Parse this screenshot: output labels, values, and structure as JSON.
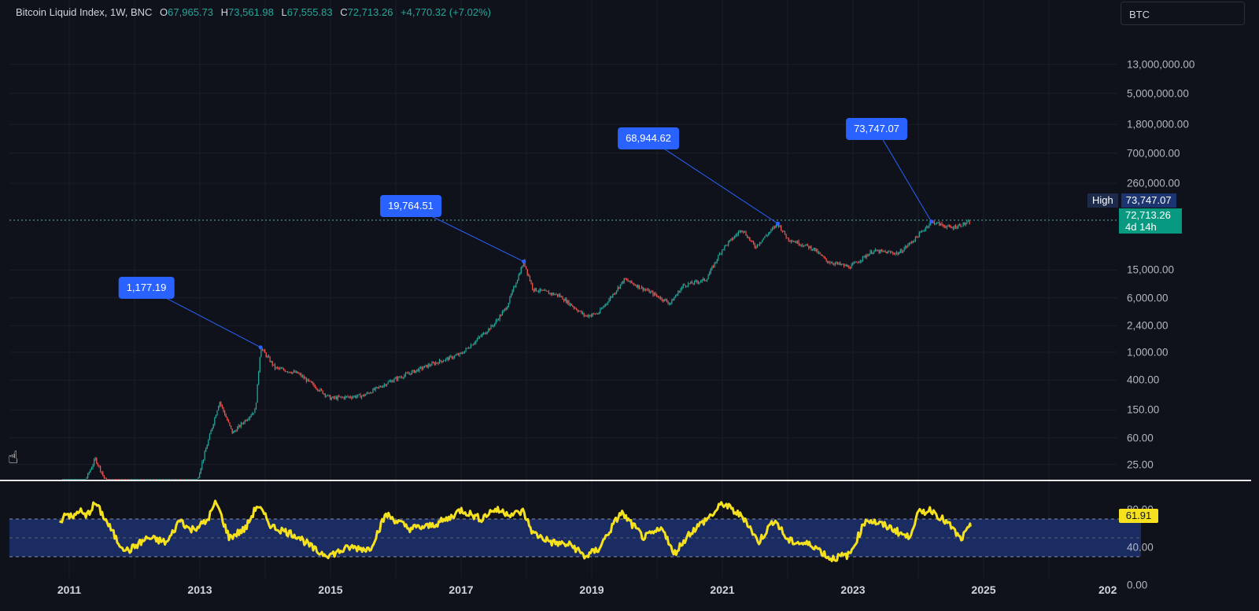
{
  "legend": {
    "symbol_text": "Bitcoin Liquid Index, 1W, BNC",
    "open_label": "O",
    "open": "67,965.73",
    "high_label": "H",
    "high": "73,561.98",
    "low_label": "L",
    "low": "67,555.83",
    "close_label": "C",
    "close": "72,713.26",
    "change": "+4,770.32 (+7.02%)"
  },
  "symbol_box": "BTC",
  "price_tags": {
    "high_label": "High",
    "high_value": "73,747.07",
    "last_value": "72,713.26",
    "countdown": "4d 14h",
    "rsi_value": "61.91"
  },
  "colors": {
    "background": "#0f121a",
    "up": "#26a69a",
    "down": "#ef5350",
    "callout": "#2962ff",
    "rsi_line": "#f5e11e",
    "rsi_band": "#1c2e66"
  },
  "chart_data": [
    {
      "type": "candlestick",
      "scale": "log",
      "x_axis_years": [
        2011,
        2013,
        2015,
        2017,
        2019,
        2021,
        2023,
        2025
      ],
      "x_tick_labels": [
        "2011",
        "2013",
        "2015",
        "2017",
        "2019",
        "2021",
        "2023",
        "2025",
        "202"
      ],
      "y_tick_labels": [
        "13,000,000.00",
        "5,000,000.00",
        "1,800,000.00",
        "700,000.00",
        "260,000.00",
        "15,000.00",
        "6,000.00",
        "2,400.00",
        "1,000.00",
        "400.00",
        "150.00",
        "60.00",
        "25.00"
      ],
      "y_ticks": [
        13000000,
        5000000,
        1800000,
        700000,
        260000,
        15000,
        6000,
        2400,
        1000,
        400,
        150,
        60,
        25
      ],
      "price_path": [
        [
          2010.9,
          3
        ],
        [
          2011.4,
          30
        ],
        [
          2011.9,
          3
        ],
        [
          2012.5,
          8
        ],
        [
          2012.95,
          14
        ],
        [
          2013.3,
          200
        ],
        [
          2013.5,
          70
        ],
        [
          2013.85,
          150
        ],
        [
          2013.93,
          1177
        ],
        [
          2014.15,
          600
        ],
        [
          2014.5,
          500
        ],
        [
          2015.0,
          220
        ],
        [
          2015.5,
          240
        ],
        [
          2015.95,
          400
        ],
        [
          2016.5,
          650
        ],
        [
          2017.0,
          950
        ],
        [
          2017.5,
          2500
        ],
        [
          2017.7,
          4500
        ],
        [
          2017.96,
          19764
        ],
        [
          2018.1,
          8000
        ],
        [
          2018.5,
          6500
        ],
        [
          2018.9,
          3300
        ],
        [
          2019.1,
          3600
        ],
        [
          2019.5,
          11000
        ],
        [
          2019.9,
          7200
        ],
        [
          2020.2,
          5000
        ],
        [
          2020.4,
          9000
        ],
        [
          2020.75,
          11000
        ],
        [
          2021.0,
          30000
        ],
        [
          2021.3,
          58000
        ],
        [
          2021.5,
          32000
        ],
        [
          2021.85,
          68944
        ],
        [
          2022.0,
          42000
        ],
        [
          2022.4,
          30000
        ],
        [
          2022.6,
          20000
        ],
        [
          2022.95,
          16500
        ],
        [
          2023.3,
          28000
        ],
        [
          2023.7,
          26000
        ],
        [
          2023.95,
          42000
        ],
        [
          2024.2,
          73747
        ],
        [
          2024.5,
          60000
        ],
        [
          2024.8,
          72713
        ]
      ],
      "peaks": [
        {
          "label": "1,177.19",
          "year": 2013.93,
          "value": 1177.19
        },
        {
          "label": "19,764.51",
          "year": 2017.96,
          "value": 19764.51
        },
        {
          "label": "68,944.62",
          "year": 2021.85,
          "value": 68944.62
        },
        {
          "label": "73,747.07",
          "year": 2024.2,
          "value": 73747.07
        }
      ]
    },
    {
      "type": "line",
      "name": "",
      "y_tick_labels": [
        "80.00",
        "40.00",
        "0.00"
      ],
      "y_ticks": [
        80,
        40,
        0
      ],
      "band_upper": 70,
      "band_lower": 30,
      "rsi_path": [
        [
          2010.85,
          65
        ],
        [
          2010.95,
          78
        ],
        [
          2011.05,
          70
        ],
        [
          2011.15,
          80
        ],
        [
          2011.25,
          72
        ],
        [
          2011.4,
          87
        ],
        [
          2011.55,
          70
        ],
        [
          2011.75,
          45
        ],
        [
          2011.9,
          36
        ],
        [
          2012.2,
          50
        ],
        [
          2012.5,
          45
        ],
        [
          2012.7,
          70
        ],
        [
          2012.85,
          58
        ],
        [
          2013.1,
          67
        ],
        [
          2013.25,
          88
        ],
        [
          2013.45,
          50
        ],
        [
          2013.7,
          60
        ],
        [
          2013.88,
          85
        ],
        [
          2014.1,
          62
        ],
        [
          2014.5,
          52
        ],
        [
          2014.8,
          35
        ],
        [
          2015.0,
          32
        ],
        [
          2015.3,
          40
        ],
        [
          2015.6,
          38
        ],
        [
          2015.85,
          75
        ],
        [
          2016.2,
          60
        ],
        [
          2016.5,
          62
        ],
        [
          2016.8,
          70
        ],
        [
          2017.0,
          80
        ],
        [
          2017.3,
          70
        ],
        [
          2017.5,
          80
        ],
        [
          2017.8,
          75
        ],
        [
          2017.95,
          78
        ],
        [
          2018.1,
          55
        ],
        [
          2018.4,
          45
        ],
        [
          2018.7,
          42
        ],
        [
          2018.9,
          30
        ],
        [
          2019.1,
          38
        ],
        [
          2019.45,
          77
        ],
        [
          2019.8,
          50
        ],
        [
          2020.1,
          60
        ],
        [
          2020.25,
          32
        ],
        [
          2020.5,
          55
        ],
        [
          2020.9,
          78
        ],
        [
          2021.0,
          87
        ],
        [
          2021.35,
          70
        ],
        [
          2021.55,
          45
        ],
        [
          2021.8,
          70
        ],
        [
          2022.0,
          47
        ],
        [
          2022.4,
          42
        ],
        [
          2022.65,
          28
        ],
        [
          2022.95,
          32
        ],
        [
          2023.2,
          70
        ],
        [
          2023.6,
          60
        ],
        [
          2023.85,
          50
        ],
        [
          2024.0,
          76
        ],
        [
          2024.2,
          80
        ],
        [
          2024.5,
          62
        ],
        [
          2024.65,
          48
        ],
        [
          2024.8,
          61.91
        ]
      ]
    }
  ]
}
